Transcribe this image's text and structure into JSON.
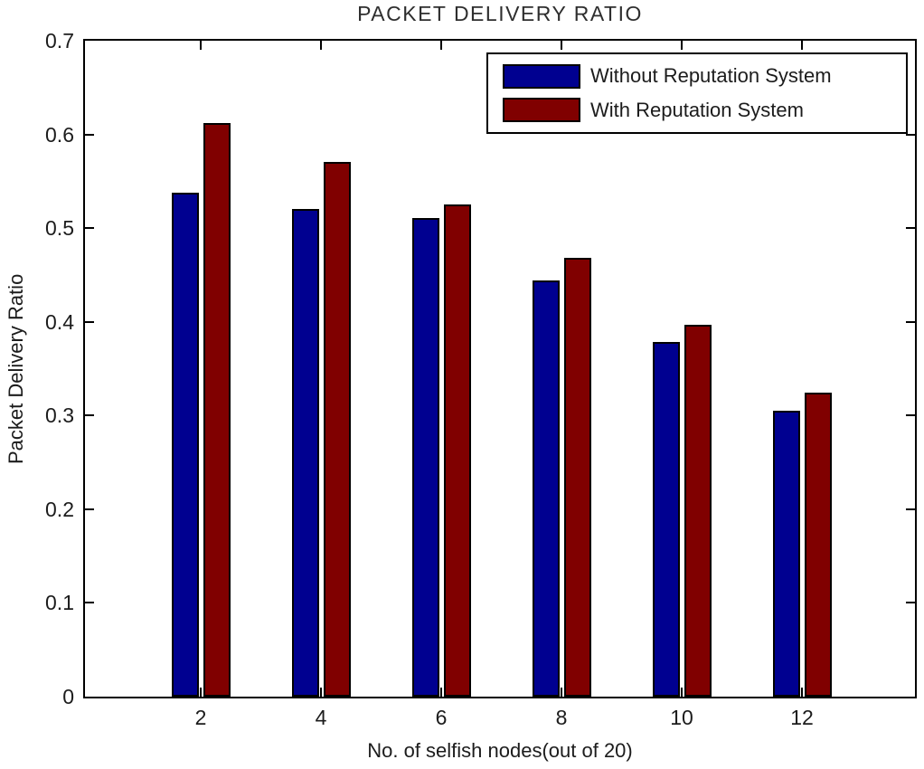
{
  "chart_data": {
    "type": "bar",
    "title": "PACKET DELIVERY RATIO",
    "xlabel": "No. of selfish nodes(out of 20)",
    "ylabel": "Packet Delivery Ratio",
    "categories": [
      2,
      4,
      6,
      8,
      10,
      12
    ],
    "series": [
      {
        "name": "Without Reputation System",
        "color": "#000090",
        "values": [
          0.538,
          0.52,
          0.511,
          0.444,
          0.378,
          0.305
        ]
      },
      {
        "name": "With Reputation System",
        "color": "#800000",
        "values": [
          0.612,
          0.571,
          0.525,
          0.468,
          0.397,
          0.324
        ]
      }
    ],
    "ylim": [
      0,
      0.7
    ],
    "yticks": [
      0,
      0.1,
      0.2,
      0.3,
      0.4,
      0.5,
      0.6,
      0.7
    ],
    "grid": false,
    "legend_position": "top-right",
    "bar_edge_color": "#000000",
    "axis_color": "#000000",
    "background": "#ffffff"
  }
}
